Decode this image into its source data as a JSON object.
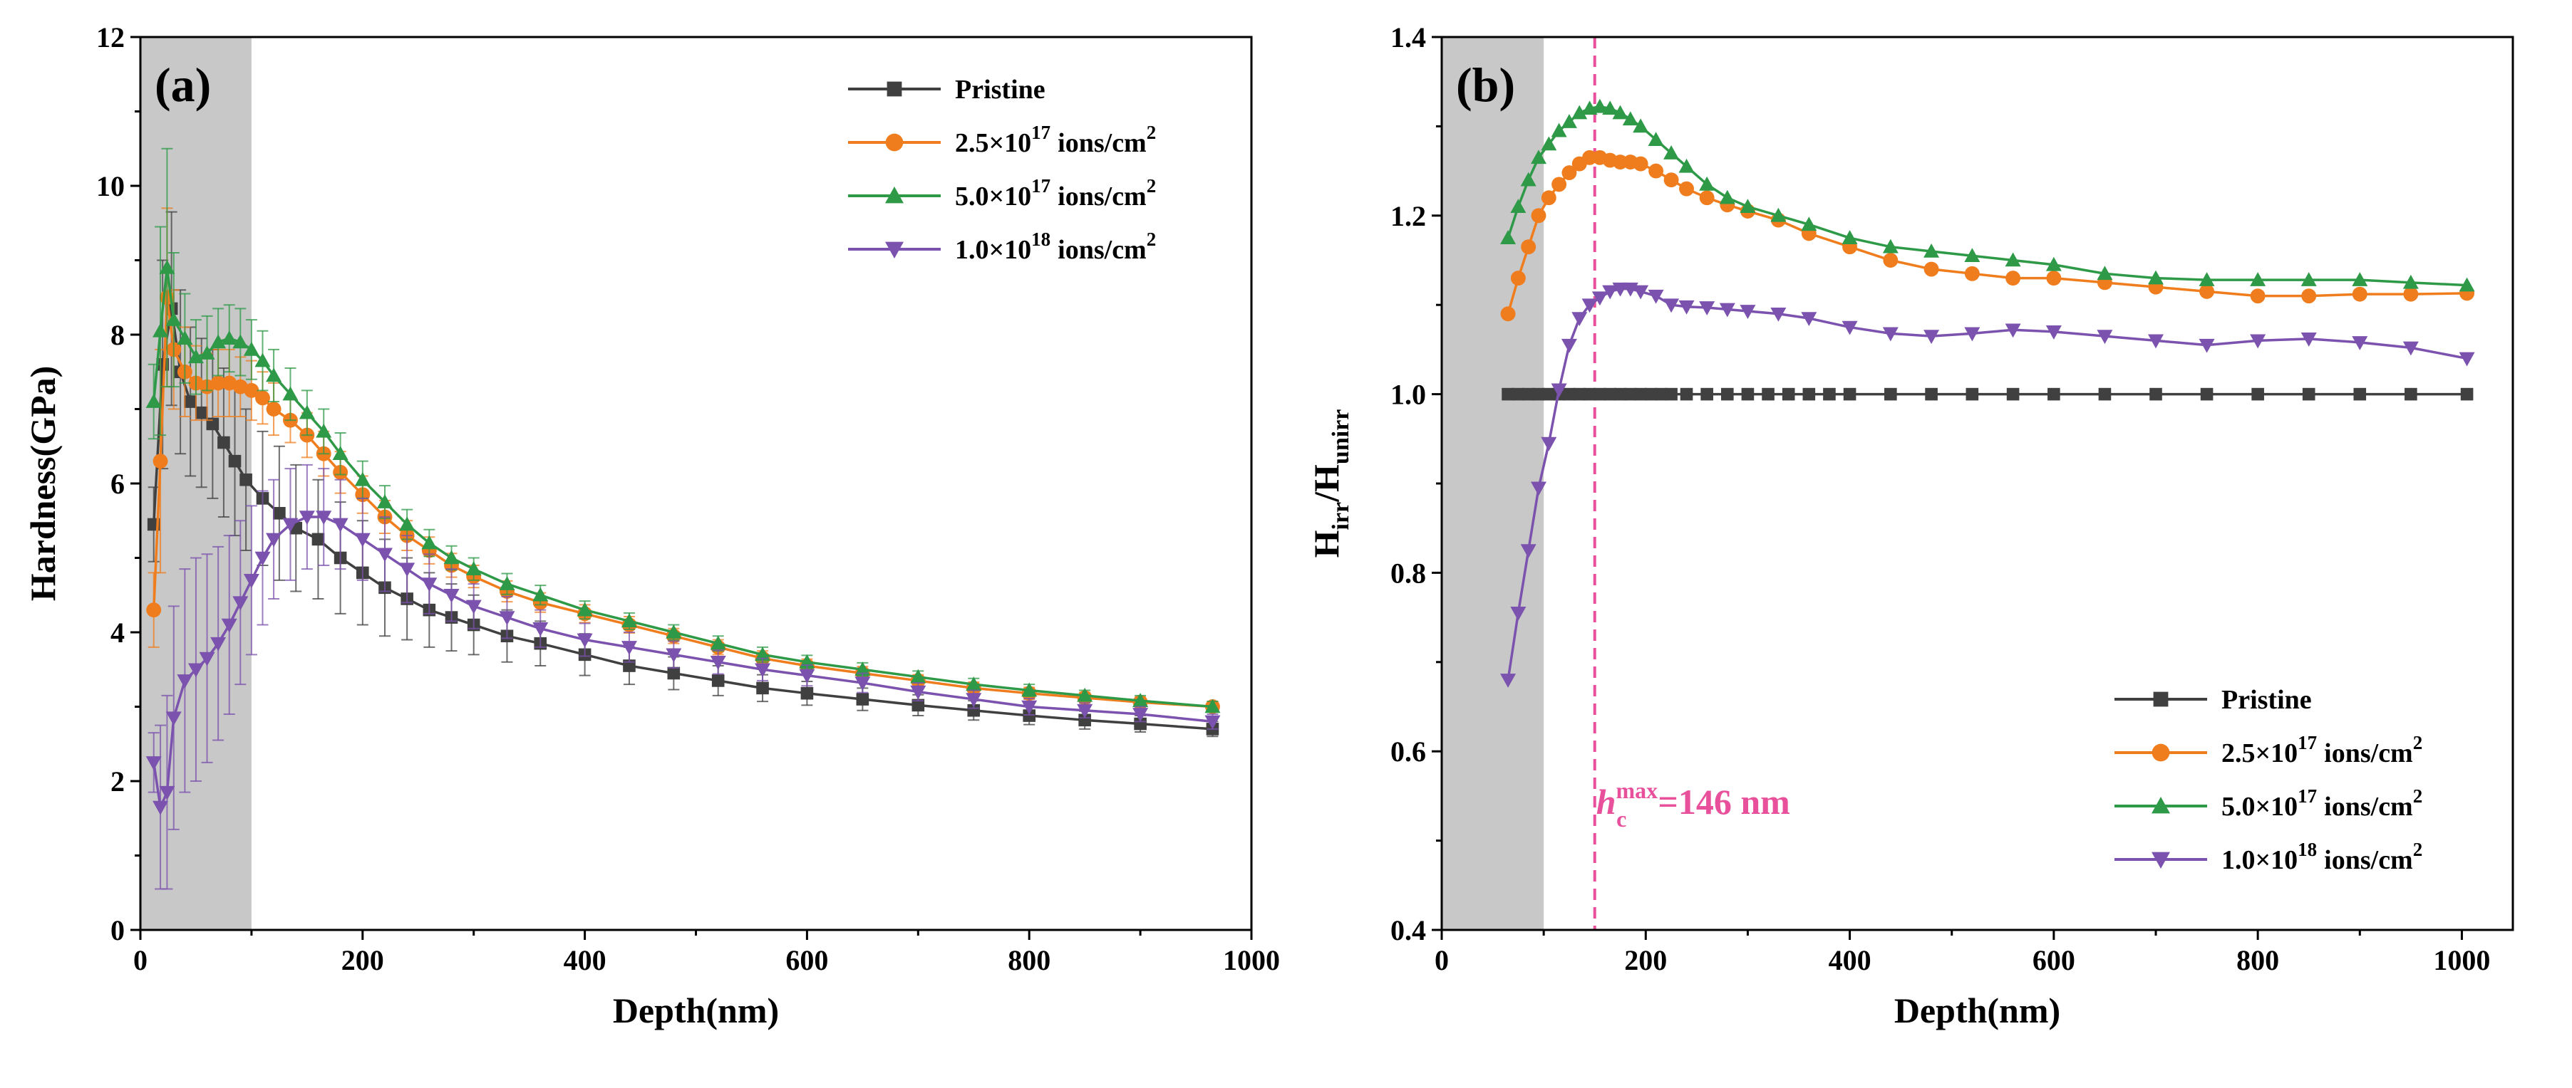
{
  "chart_data": [
    {
      "panel": "(a)",
      "type": "line",
      "xlabel": "Depth(nm)",
      "ylabel": "Hardness(GPa)",
      "xlim": [
        0,
        1000
      ],
      "ylim": [
        0,
        12
      ],
      "xticks": [
        "0",
        "200",
        "400",
        "600",
        "800",
        "1000"
      ],
      "yticks": [
        "0",
        "2",
        "4",
        "6",
        "8",
        "10",
        "12"
      ],
      "shaded_region": [
        0,
        100
      ],
      "legend_position": "top-right",
      "series": [
        {
          "name": "Pristine",
          "name_base": "Pristine",
          "name_exp": "",
          "name_unit": "",
          "color": "#404040",
          "marker": "square",
          "x": [
            12,
            20,
            28,
            36,
            45,
            55,
            65,
            75,
            85,
            95,
            110,
            125,
            140,
            160,
            180,
            200,
            220,
            240,
            260,
            280,
            300,
            330,
            360,
            400,
            440,
            480,
            520,
            560,
            600,
            650,
            700,
            750,
            800,
            850,
            900,
            965
          ],
          "y": [
            5.45,
            7.6,
            8.35,
            7.5,
            7.1,
            6.95,
            6.8,
            6.55,
            6.3,
            6.05,
            5.8,
            5.6,
            5.4,
            5.25,
            5.0,
            4.8,
            4.6,
            4.45,
            4.3,
            4.2,
            4.1,
            3.95,
            3.85,
            3.7,
            3.55,
            3.45,
            3.35,
            3.25,
            3.18,
            3.1,
            3.02,
            2.95,
            2.88,
            2.82,
            2.77,
            2.7
          ],
          "err": [
            0.5,
            1.4,
            1.3,
            1.1,
            1.0,
            1.0,
            1.0,
            1.0,
            1.0,
            0.95,
            0.9,
            0.9,
            0.85,
            0.8,
            0.75,
            0.7,
            0.65,
            0.55,
            0.5,
            0.45,
            0.4,
            0.35,
            0.3,
            0.28,
            0.25,
            0.22,
            0.2,
            0.18,
            0.16,
            0.15,
            0.14,
            0.13,
            0.12,
            0.12,
            0.11,
            0.1
          ]
        },
        {
          "name": "2.5×10^17 ions/cm^2",
          "name_base": "2.5×10",
          "name_exp": "17",
          "name_unit": "ions/cm",
          "color": "#f07d1d",
          "marker": "circle",
          "x": [
            12,
            18,
            24,
            30,
            40,
            50,
            60,
            70,
            80,
            90,
            100,
            110,
            120,
            135,
            150,
            165,
            180,
            200,
            220,
            240,
            260,
            280,
            300,
            330,
            360,
            400,
            440,
            480,
            520,
            560,
            600,
            650,
            700,
            750,
            800,
            850,
            900,
            965
          ],
          "y": [
            4.3,
            6.3,
            8.5,
            7.8,
            7.5,
            7.35,
            7.3,
            7.35,
            7.35,
            7.3,
            7.25,
            7.15,
            7.0,
            6.85,
            6.65,
            6.4,
            6.15,
            5.85,
            5.55,
            5.3,
            5.1,
            4.9,
            4.75,
            4.55,
            4.4,
            4.25,
            4.1,
            3.95,
            3.8,
            3.65,
            3.55,
            3.45,
            3.35,
            3.25,
            3.18,
            3.12,
            3.06,
            3.0
          ],
          "err": [
            0.5,
            1.5,
            1.2,
            0.8,
            0.6,
            0.5,
            0.45,
            0.45,
            0.45,
            0.4,
            0.4,
            0.35,
            0.35,
            0.3,
            0.3,
            0.3,
            0.28,
            0.25,
            0.22,
            0.2,
            0.18,
            0.16,
            0.15,
            0.14,
            0.13,
            0.12,
            0.11,
            0.1,
            0.1,
            0.1,
            0.09,
            0.09,
            0.08,
            0.08,
            0.08,
            0.07,
            0.07,
            0.07
          ]
        },
        {
          "name": "5.0×10^17 ions/cm^2",
          "name_base": "5.0×10",
          "name_exp": "17",
          "name_unit": "ions/cm",
          "color": "#2e9a48",
          "marker": "triangle-up",
          "x": [
            12,
            18,
            24,
            30,
            40,
            50,
            60,
            70,
            80,
            90,
            100,
            110,
            120,
            135,
            150,
            165,
            180,
            200,
            220,
            240,
            260,
            280,
            300,
            330,
            360,
            400,
            440,
            480,
            520,
            560,
            600,
            650,
            700,
            750,
            800,
            850,
            900,
            965
          ],
          "y": [
            7.1,
            8.05,
            8.9,
            8.2,
            7.95,
            7.7,
            7.75,
            7.9,
            7.95,
            7.9,
            7.8,
            7.65,
            7.45,
            7.2,
            6.95,
            6.7,
            6.4,
            6.05,
            5.75,
            5.45,
            5.2,
            5.0,
            4.85,
            4.65,
            4.5,
            4.3,
            4.15,
            4.0,
            3.85,
            3.7,
            3.6,
            3.5,
            3.4,
            3.3,
            3.22,
            3.15,
            3.08,
            3.0
          ],
          "err": [
            0.5,
            1.4,
            1.6,
            0.9,
            0.6,
            0.5,
            0.5,
            0.45,
            0.45,
            0.45,
            0.4,
            0.4,
            0.35,
            0.35,
            0.3,
            0.3,
            0.28,
            0.25,
            0.22,
            0.2,
            0.18,
            0.16,
            0.15,
            0.14,
            0.13,
            0.12,
            0.11,
            0.1,
            0.1,
            0.1,
            0.09,
            0.09,
            0.08,
            0.08,
            0.08,
            0.07,
            0.07,
            0.07
          ]
        },
        {
          "name": "1.0×10^18 ions/cm^2",
          "name_base": "1.0×10",
          "name_exp": "18",
          "name_unit": "ions/cm",
          "color": "#7b52ae",
          "marker": "triangle-down",
          "x": [
            12,
            18,
            24,
            30,
            40,
            50,
            60,
            70,
            80,
            90,
            100,
            110,
            120,
            135,
            150,
            165,
            180,
            200,
            220,
            240,
            260,
            280,
            300,
            330,
            360,
            400,
            440,
            480,
            520,
            560,
            600,
            650,
            700,
            750,
            800,
            850,
            900,
            965
          ],
          "y": [
            2.25,
            1.65,
            1.85,
            2.85,
            3.35,
            3.5,
            3.65,
            3.85,
            4.1,
            4.4,
            4.7,
            5.0,
            5.25,
            5.45,
            5.55,
            5.55,
            5.45,
            5.25,
            5.05,
            4.85,
            4.65,
            4.5,
            4.35,
            4.2,
            4.05,
            3.9,
            3.8,
            3.7,
            3.6,
            3.5,
            3.42,
            3.32,
            3.2,
            3.1,
            3.0,
            2.95,
            2.9,
            2.8
          ],
          "err": [
            0.4,
            1.1,
            1.3,
            1.5,
            1.5,
            1.5,
            1.4,
            1.3,
            1.2,
            1.1,
            1.0,
            0.9,
            0.8,
            0.75,
            0.7,
            0.65,
            0.6,
            0.55,
            0.5,
            0.45,
            0.4,
            0.35,
            0.3,
            0.28,
            0.25,
            0.22,
            0.2,
            0.18,
            0.16,
            0.15,
            0.14,
            0.13,
            0.12,
            0.12,
            0.11,
            0.1,
            0.1,
            0.1
          ]
        }
      ]
    },
    {
      "panel": "(b)",
      "type": "line",
      "xlabel": "Depth(nm)",
      "ylabel_main": "H",
      "ylabel_sub1": "irr",
      "ylabel_sep": "/H",
      "ylabel_sub2": "unirr",
      "xlim": [
        0,
        1050
      ],
      "ylim": [
        0.4,
        1.4
      ],
      "xticks": [
        "0",
        "200",
        "400",
        "600",
        "800",
        "1000"
      ],
      "yticks": [
        "0.4",
        "0.6",
        "0.8",
        "1.0",
        "1.2",
        "1.4"
      ],
      "shaded_region": [
        0,
        100
      ],
      "vline_x": 150,
      "annotation": {
        "prefix": "h",
        "sup": "max",
        "sub": "c",
        "text": "=146 nm"
      },
      "legend_position": "bottom-right",
      "series": [
        {
          "name": "Pristine",
          "name_base": "Pristine",
          "name_exp": "",
          "name_unit": "",
          "color": "#404040",
          "marker": "square",
          "x": [
            65,
            75,
            85,
            95,
            105,
            115,
            125,
            135,
            145,
            155,
            165,
            175,
            185,
            195,
            205,
            215,
            225,
            240,
            260,
            280,
            300,
            320,
            340,
            360,
            380,
            400,
            440,
            480,
            520,
            560,
            600,
            650,
            700,
            750,
            800,
            850,
            900,
            950,
            1005
          ],
          "y": [
            1.0,
            1.0,
            1.0,
            1.0,
            1.0,
            1.0,
            1.0,
            1.0,
            1.0,
            1.0,
            1.0,
            1.0,
            1.0,
            1.0,
            1.0,
            1.0,
            1.0,
            1.0,
            1.0,
            1.0,
            1.0,
            1.0,
            1.0,
            1.0,
            1.0,
            1.0,
            1.0,
            1.0,
            1.0,
            1.0,
            1.0,
            1.0,
            1.0,
            1.0,
            1.0,
            1.0,
            1.0,
            1.0,
            1.0
          ]
        },
        {
          "name": "2.5×10^17 ions/cm^2",
          "name_base": "2.5×10",
          "name_exp": "17",
          "name_unit": "ions/cm",
          "color": "#f07d1d",
          "marker": "circle",
          "x": [
            65,
            75,
            85,
            95,
            105,
            115,
            125,
            135,
            145,
            155,
            165,
            175,
            185,
            195,
            210,
            225,
            240,
            260,
            280,
            300,
            330,
            360,
            400,
            440,
            480,
            520,
            560,
            600,
            650,
            700,
            750,
            800,
            850,
            900,
            950,
            1005
          ],
          "y": [
            1.09,
            1.13,
            1.165,
            1.2,
            1.22,
            1.235,
            1.248,
            1.258,
            1.265,
            1.265,
            1.262,
            1.26,
            1.26,
            1.258,
            1.25,
            1.24,
            1.23,
            1.22,
            1.212,
            1.205,
            1.195,
            1.18,
            1.165,
            1.15,
            1.14,
            1.135,
            1.13,
            1.13,
            1.125,
            1.12,
            1.115,
            1.11,
            1.11,
            1.112,
            1.112,
            1.113
          ]
        },
        {
          "name": "5.0×10^17 ions/cm^2",
          "name_base": "5.0×10",
          "name_exp": "17",
          "name_unit": "ions/cm",
          "color": "#2e9a48",
          "marker": "triangle-up",
          "x": [
            65,
            75,
            85,
            95,
            105,
            115,
            125,
            135,
            145,
            155,
            165,
            175,
            185,
            195,
            210,
            225,
            240,
            260,
            280,
            300,
            330,
            360,
            400,
            440,
            480,
            520,
            560,
            600,
            650,
            700,
            750,
            800,
            850,
            900,
            950,
            1005
          ],
          "y": [
            1.175,
            1.21,
            1.24,
            1.265,
            1.28,
            1.295,
            1.305,
            1.315,
            1.32,
            1.322,
            1.32,
            1.315,
            1.308,
            1.3,
            1.285,
            1.27,
            1.255,
            1.235,
            1.22,
            1.21,
            1.2,
            1.19,
            1.175,
            1.165,
            1.16,
            1.155,
            1.15,
            1.145,
            1.135,
            1.13,
            1.128,
            1.128,
            1.128,
            1.128,
            1.125,
            1.122
          ]
        },
        {
          "name": "1.0×10^18 ions/cm^2",
          "name_base": "1.0×10",
          "name_exp": "18",
          "name_unit": "ions/cm",
          "color": "#7b52ae",
          "marker": "triangle-down",
          "x": [
            65,
            75,
            85,
            95,
            105,
            115,
            125,
            135,
            145,
            155,
            165,
            175,
            185,
            195,
            210,
            225,
            240,
            260,
            280,
            300,
            330,
            360,
            400,
            440,
            480,
            520,
            560,
            600,
            650,
            700,
            750,
            800,
            850,
            900,
            950,
            1005
          ],
          "y": [
            0.68,
            0.755,
            0.825,
            0.895,
            0.945,
            1.005,
            1.055,
            1.085,
            1.1,
            1.108,
            1.115,
            1.118,
            1.118,
            1.115,
            1.11,
            1.1,
            1.098,
            1.097,
            1.095,
            1.093,
            1.09,
            1.085,
            1.075,
            1.068,
            1.065,
            1.068,
            1.072,
            1.07,
            1.065,
            1.06,
            1.055,
            1.06,
            1.062,
            1.058,
            1.052,
            1.04
          ]
        }
      ]
    }
  ]
}
